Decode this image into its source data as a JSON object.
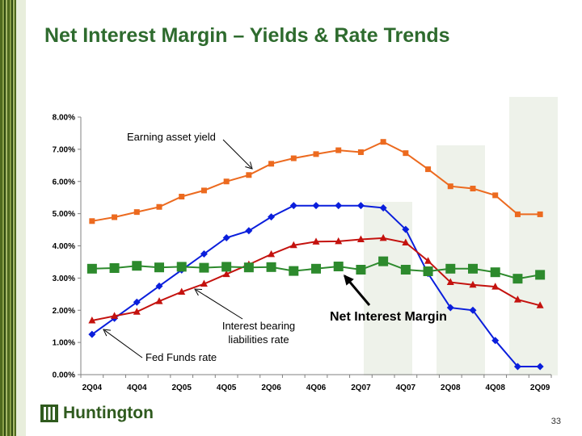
{
  "title": "Net Interest Margin – Yields & Rate Trends",
  "page_number": "33",
  "logo_text": "Huntington",
  "chart_data": {
    "type": "line",
    "x": [
      "2Q04",
      "3Q04",
      "4Q04",
      "1Q05",
      "2Q05",
      "3Q05",
      "4Q05",
      "1Q06",
      "2Q06",
      "3Q06",
      "4Q06",
      "1Q07",
      "2Q07",
      "3Q07",
      "4Q07",
      "1Q08",
      "2Q08",
      "3Q08",
      "4Q08",
      "1Q09",
      "2Q09"
    ],
    "x_tick_labels": [
      "2Q04",
      "4Q04",
      "2Q05",
      "4Q05",
      "2Q06",
      "4Q06",
      "2Q07",
      "4Q07",
      "2Q08",
      "4Q08",
      "2Q09"
    ],
    "y_ticks": [
      "0.00%",
      "1.00%",
      "2.00%",
      "3.00%",
      "4.00%",
      "5.00%",
      "6.00%",
      "7.00%",
      "8.00%"
    ],
    "ylim": [
      0,
      8
    ],
    "grid": false,
    "series": [
      {
        "id": "earning",
        "color": "#ec6a1f",
        "marker": "square",
        "values": [
          4.77,
          4.89,
          5.05,
          5.21,
          5.53,
          5.72,
          6.0,
          6.2,
          6.55,
          6.72,
          6.85,
          6.97,
          6.91,
          7.23,
          6.88,
          6.38,
          5.85,
          5.78,
          5.57,
          4.98,
          4.98
        ]
      },
      {
        "id": "fedfunds",
        "color": "#0a1edc",
        "marker": "diamond",
        "values": [
          1.25,
          1.75,
          2.25,
          2.75,
          3.25,
          3.75,
          4.25,
          4.47,
          4.9,
          5.25,
          5.25,
          5.25,
          5.25,
          5.18,
          4.51,
          3.14,
          2.08,
          2.0,
          1.06,
          0.25,
          0.25
        ]
      },
      {
        "id": "liabilities",
        "color": "#c4120e",
        "marker": "triangle",
        "values": [
          1.68,
          1.82,
          1.95,
          2.28,
          2.57,
          2.82,
          3.12,
          3.42,
          3.74,
          4.02,
          4.13,
          4.14,
          4.2,
          4.24,
          4.1,
          3.53,
          2.87,
          2.79,
          2.73,
          2.33,
          2.15
        ]
      },
      {
        "id": "nim",
        "color": "#2d8a2d",
        "marker": "square-large",
        "values": [
          3.29,
          3.31,
          3.38,
          3.33,
          3.35,
          3.32,
          3.35,
          3.33,
          3.34,
          3.22,
          3.29,
          3.36,
          3.26,
          3.52,
          3.26,
          3.21,
          3.29,
          3.29,
          3.18,
          2.98,
          3.1
        ]
      }
    ],
    "annotations": [
      {
        "id": "earning",
        "text": [
          "Earning asset yield"
        ],
        "bold": false,
        "size": 13
      },
      {
        "id": "liabilities",
        "text": [
          "Interest bearing",
          "liabilities rate"
        ],
        "bold": false,
        "size": 13
      },
      {
        "id": "fedfunds",
        "text": [
          "Fed Funds rate"
        ],
        "bold": false,
        "size": 13
      },
      {
        "id": "nim",
        "text": [
          "Net Interest Margin"
        ],
        "bold": true,
        "size": 16
      }
    ]
  }
}
